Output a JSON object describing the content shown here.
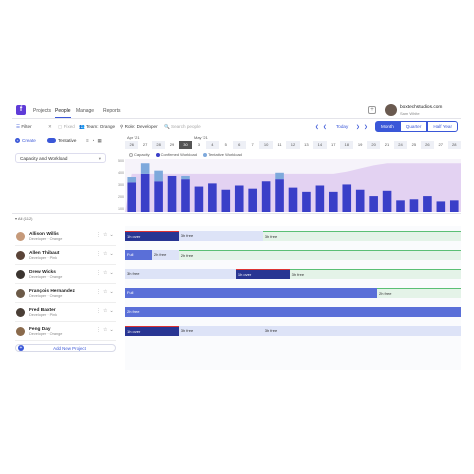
{
  "app": {
    "nav": [
      "Projects",
      "People",
      "Manage",
      "Reports"
    ],
    "active_nav": "People"
  },
  "user": {
    "company": "boxtechstudios.com",
    "name": "Sam White"
  },
  "toolbar": {
    "filter": "Filter",
    "fixed": "Fixed",
    "team": "Team: Orange",
    "role": "Role: Developer",
    "search_placeholder": "Search people",
    "today": "Today",
    "views": [
      "Month",
      "Quarter",
      "Half Year"
    ],
    "active_view": "Month"
  },
  "subbar": {
    "create": "Create",
    "tentative": "Tentative"
  },
  "calendar": {
    "month1": "Apr '21",
    "month2": "May '21",
    "days": [
      "26",
      "27",
      "28",
      "29",
      "30",
      "3",
      "4",
      "5",
      "6",
      "7",
      "10",
      "11",
      "12",
      "13",
      "14",
      "17",
      "18",
      "19",
      "20",
      "21",
      "24",
      "25",
      "26",
      "27",
      "28"
    ],
    "selected_day": "30"
  },
  "legend": {
    "capacity": "Capacity",
    "confirmed": "Confirmed Workload",
    "tentative": "Tentative Workload"
  },
  "workload_select": "Capacity and Workload",
  "chart_data": {
    "type": "bar",
    "y_ticks": [
      "500",
      "400",
      "300",
      "200",
      "100"
    ],
    "confirmed": [
      0.56,
      0.72,
      0.58,
      0.68,
      0.62,
      0.48,
      0.54,
      0.42,
      0.5,
      0.44,
      0.58,
      0.62,
      0.46,
      0.38,
      0.5,
      0.38,
      0.52,
      0.42,
      0.3,
      0.4,
      0.22,
      0.24,
      0.3,
      0.2,
      0.22
    ],
    "tentative": [
      0.1,
      0.2,
      0.2,
      0.0,
      0.06,
      0.0,
      0.0,
      0.0,
      0.0,
      0.0,
      0.0,
      0.12,
      0.0,
      0.0,
      0.0,
      0.0,
      0.0,
      0.0,
      0.0,
      0.0,
      0.0,
      0.0,
      0.0,
      0.0,
      0.0
    ],
    "capacity": [
      0.72,
      0.72,
      0.72,
      0.72,
      0.72,
      0.72,
      0.72,
      0.72,
      0.72,
      0.72,
      0.72,
      0.72,
      0.72,
      0.72,
      0.72,
      0.72,
      0.76,
      0.82,
      0.88,
      0.92,
      0.92,
      0.92,
      0.92,
      0.92,
      0.92
    ]
  },
  "section": "All (112)",
  "people": [
    {
      "name": "Allison Willis",
      "role": "Developer",
      "team": "Orange",
      "color": "#c69a7a"
    },
    {
      "name": "Allen Thibaut",
      "role": "Developer",
      "team": "Pink",
      "color": "#5a4438"
    },
    {
      "name": "Drew Wicks",
      "role": "Developer",
      "team": "Orange",
      "color": "#3b3530"
    },
    {
      "name": "François Hernandez",
      "role": "Developer",
      "team": "Orange",
      "color": "#6c5a48"
    },
    {
      "name": "Fred Baxter",
      "role": "Developer",
      "team": "Pink",
      "color": "#4a3e36"
    },
    {
      "name": "Feng Day",
      "role": "Developer",
      "team": "Orange",
      "color": "#8a6a4c"
    }
  ],
  "bars": [
    [
      {
        "label": "1h over",
        "kind": "over",
        "start": 0,
        "end": 0.16
      },
      {
        "label": "3h free",
        "kind": "free",
        "start": 0.16,
        "end": 0.41
      },
      {
        "label": "3h free",
        "kind": "free2",
        "start": 0.41,
        "end": 1
      }
    ],
    [
      {
        "label": "Full",
        "kind": "full",
        "start": 0,
        "end": 0.08
      },
      {
        "label": "2h free",
        "kind": "free",
        "start": 0.08,
        "end": 0.16
      },
      {
        "label": "2h free",
        "kind": "free2",
        "start": 0.16,
        "end": 1
      }
    ],
    [
      {
        "label": "3h free",
        "kind": "free",
        "start": 0,
        "end": 0.33
      },
      {
        "label": "1h over",
        "kind": "over",
        "start": 0.33,
        "end": 0.49
      },
      {
        "label": "3h free",
        "kind": "free2",
        "start": 0.49,
        "end": 1
      }
    ],
    [
      {
        "label": "Full",
        "kind": "full",
        "start": 0,
        "end": 0.75
      },
      {
        "label": "2h free",
        "kind": "free2",
        "start": 0.75,
        "end": 1
      }
    ],
    [
      {
        "label": "2h free",
        "kind": "full",
        "start": 0,
        "end": 1
      }
    ],
    [
      {
        "label": "1h over",
        "kind": "over",
        "start": 0,
        "end": 0.16
      },
      {
        "label": "3h free",
        "kind": "free",
        "start": 0.16,
        "end": 0.41
      },
      {
        "label": "3h free",
        "kind": "free",
        "start": 0.41,
        "end": 1
      }
    ]
  ],
  "add_project": "Add New Project"
}
